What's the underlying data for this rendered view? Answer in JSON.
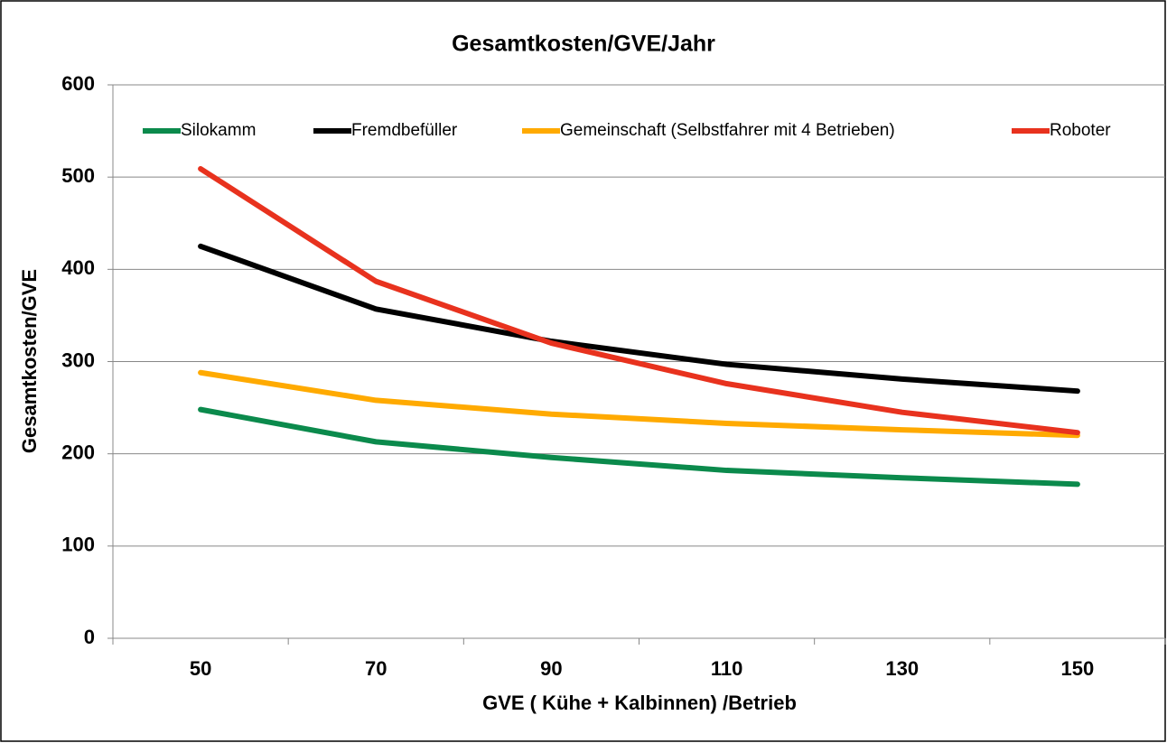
{
  "chart_data": {
    "type": "line",
    "title": "Gesamtkosten/GVE/Jahr",
    "x_label": "GVE  ( Kühe + Kalbinnen) /Betrieb",
    "y_label": "Gesamtkosten/GVE",
    "categories": [
      "50",
      "70",
      "90",
      "110",
      "130",
      "150"
    ],
    "series": [
      {
        "name": "Silokamm",
        "color": "#0b8a4c",
        "values": [
          248,
          213,
          196,
          182,
          174,
          167
        ]
      },
      {
        "name": "Fremdbefüller",
        "color": "#000000",
        "values": [
          425,
          357,
          322,
          297,
          281,
          268
        ]
      },
      {
        "name": "Gemeinschaft (Selbstfahrer mit 4 Betrieben)",
        "color": "#ffaa00",
        "values": [
          288,
          258,
          243,
          233,
          226,
          220
        ]
      },
      {
        "name": "Roboter",
        "color": "#e8321e",
        "values": [
          509,
          387,
          320,
          276,
          245,
          223
        ]
      }
    ],
    "ylim": [
      0,
      600
    ],
    "yticks": [
      0,
      100,
      200,
      300,
      400,
      500,
      600
    ],
    "grid": true,
    "legend": "top"
  }
}
